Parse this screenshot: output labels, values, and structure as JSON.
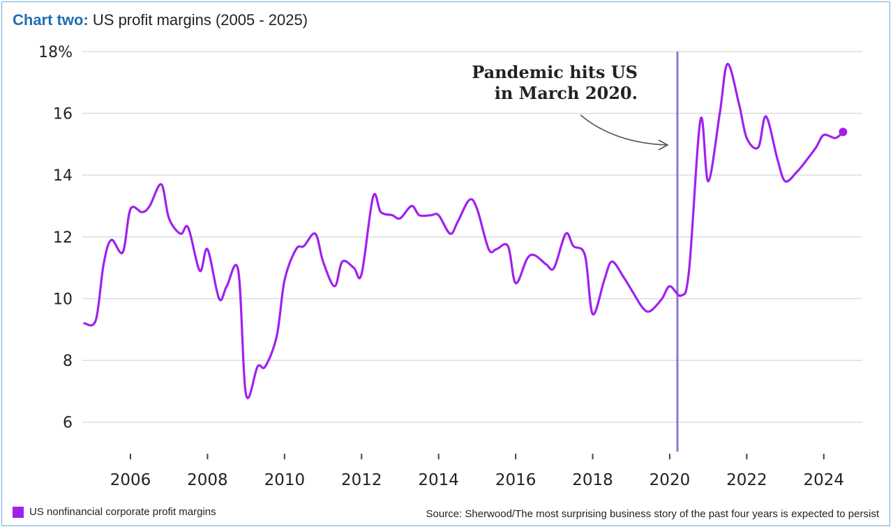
{
  "header": {
    "title_lead": "Chart two:",
    "title_rest": "US profit margins (2005 - 2025)"
  },
  "legend": {
    "label": "US nonfinancial corporate profit margins",
    "color": "#a020f0"
  },
  "source": "Source: Sherwood/The most surprising business story of the past four years is expected to persist",
  "chart_data": {
    "type": "line",
    "title": "US profit margins (2005 - 2025)",
    "xlabel": "",
    "ylabel": "",
    "xlim": [
      2004.75,
      2025.0
    ],
    "ylim": [
      5,
      18
    ],
    "y_ticks": [
      6,
      8,
      10,
      12,
      14,
      16,
      18
    ],
    "y_tick_labels": [
      "6",
      "8",
      "10",
      "12",
      "14",
      "16",
      "18%"
    ],
    "x_ticks": [
      2006,
      2008,
      2010,
      2012,
      2014,
      2016,
      2018,
      2020,
      2022,
      2024
    ],
    "x_tick_labels": [
      "2006",
      "2008",
      "2010",
      "2012",
      "2014",
      "2016",
      "2018",
      "2020",
      "2022",
      "2024"
    ],
    "grid": "horizontal",
    "legend_position": "bottom-left",
    "series": [
      {
        "name": "US nonfinancial corporate profit margins",
        "color": "#a020f0",
        "x": [
          2004.8,
          2005.1,
          2005.3,
          2005.5,
          2005.8,
          2006.0,
          2006.3,
          2006.5,
          2006.8,
          2007.0,
          2007.3,
          2007.5,
          2007.8,
          2008.0,
          2008.3,
          2008.5,
          2008.8,
          2009.0,
          2009.3,
          2009.5,
          2009.8,
          2010.0,
          2010.3,
          2010.5,
          2010.8,
          2011.0,
          2011.3,
          2011.5,
          2011.8,
          2012.0,
          2012.3,
          2012.5,
          2012.8,
          2013.0,
          2013.3,
          2013.5,
          2013.8,
          2014.0,
          2014.3,
          2014.5,
          2014.8,
          2015.0,
          2015.3,
          2015.5,
          2015.8,
          2016.0,
          2016.3,
          2016.5,
          2016.8,
          2017.0,
          2017.3,
          2017.5,
          2017.8,
          2018.0,
          2018.3,
          2018.5,
          2018.8,
          2019.0,
          2019.3,
          2019.5,
          2019.8,
          2020.0,
          2020.3,
          2020.5,
          2020.8,
          2021.0,
          2021.3,
          2021.5,
          2021.8,
          2022.0,
          2022.3,
          2022.5,
          2022.8,
          2023.0,
          2023.3,
          2023.5,
          2023.8,
          2024.0,
          2024.3,
          2024.5
        ],
        "values": [
          9.2,
          9.3,
          11.1,
          11.9,
          11.5,
          12.9,
          12.8,
          13.0,
          13.7,
          12.6,
          12.1,
          12.3,
          10.9,
          11.6,
          10.0,
          10.4,
          10.9,
          6.9,
          7.8,
          7.8,
          8.8,
          10.6,
          11.6,
          11.7,
          12.1,
          11.2,
          10.4,
          11.2,
          11.0,
          10.8,
          13.3,
          12.8,
          12.7,
          12.6,
          13.0,
          12.7,
          12.7,
          12.7,
          12.1,
          12.5,
          13.2,
          12.9,
          11.6,
          11.6,
          11.7,
          10.5,
          11.3,
          11.4,
          11.1,
          11.0,
          12.1,
          11.7,
          11.4,
          9.5,
          10.6,
          11.2,
          10.7,
          10.3,
          9.7,
          9.6,
          10.0,
          10.4,
          10.1,
          10.9,
          15.8,
          13.8,
          16.0,
          17.6,
          16.3,
          15.2,
          14.9,
          15.9,
          14.5,
          13.8,
          14.1,
          14.4,
          14.9,
          15.3,
          15.2,
          15.4
        ]
      }
    ],
    "markers": [
      {
        "x": 2020.2,
        "label": "Pandemic hits US in March 2020.",
        "label_lines": [
          "Pandemic hits US",
          "in March 2020."
        ],
        "color": "#7e5bd1"
      }
    ]
  }
}
